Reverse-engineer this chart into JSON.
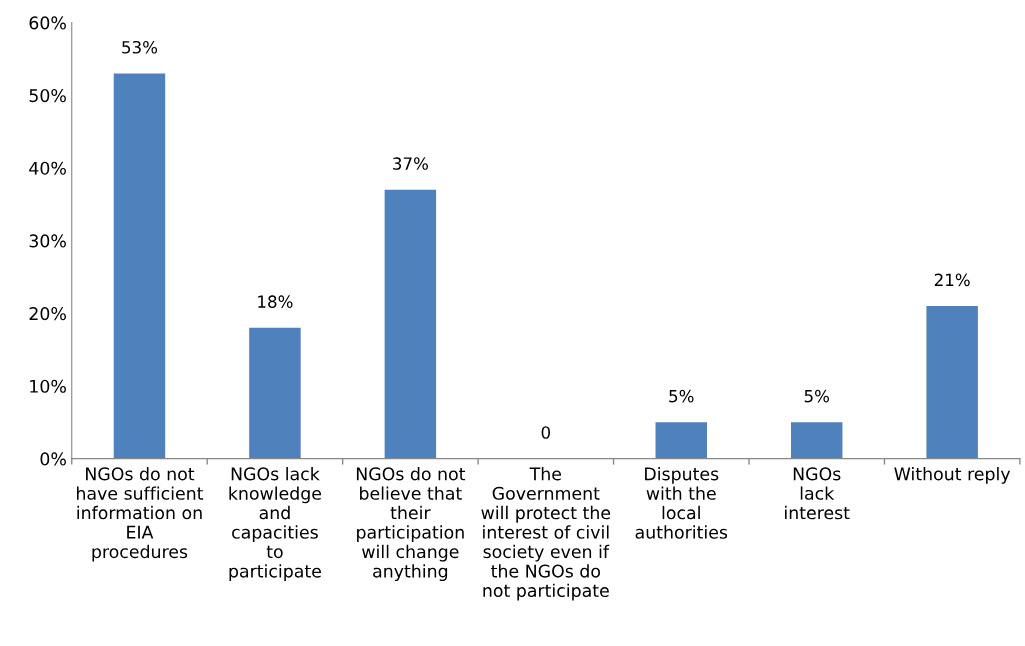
{
  "chart_data": {
    "type": "bar",
    "categories": [
      "NGOs do not\nhave sufficient\ninformation on\nEIA\nprocedures",
      "NGOs lack\nknowledge\nand\ncapacities\nto\nparticipate",
      "NGOs do not\nbelieve that\ntheir\nparticipation\nwill change\nanything",
      "The\nGovernment\nwill protect the\ninterest of civil\nsociety even if\nthe NGOs do\nnot participate",
      "Disputes\nwith the\nlocal\nauthorities",
      "NGOs\nlack\ninterest",
      "Without reply"
    ],
    "values": [
      53,
      18,
      37,
      0,
      5,
      5,
      21
    ],
    "value_labels": [
      "53%",
      "18%",
      "37%",
      "0",
      "5%",
      "5%",
      "21%"
    ],
    "color": "#4f81bd",
    "ylim": [
      0,
      60
    ],
    "yticks": [
      {
        "value": 0,
        "label": "0%"
      },
      {
        "value": 10,
        "label": "10%"
      },
      {
        "value": 20,
        "label": "20%"
      },
      {
        "value": 30,
        "label": "30%"
      },
      {
        "value": 40,
        "label": "40%"
      },
      {
        "value": 50,
        "label": "50%"
      },
      {
        "value": 60,
        "label": "60%"
      }
    ],
    "grid": false,
    "legend": false
  }
}
